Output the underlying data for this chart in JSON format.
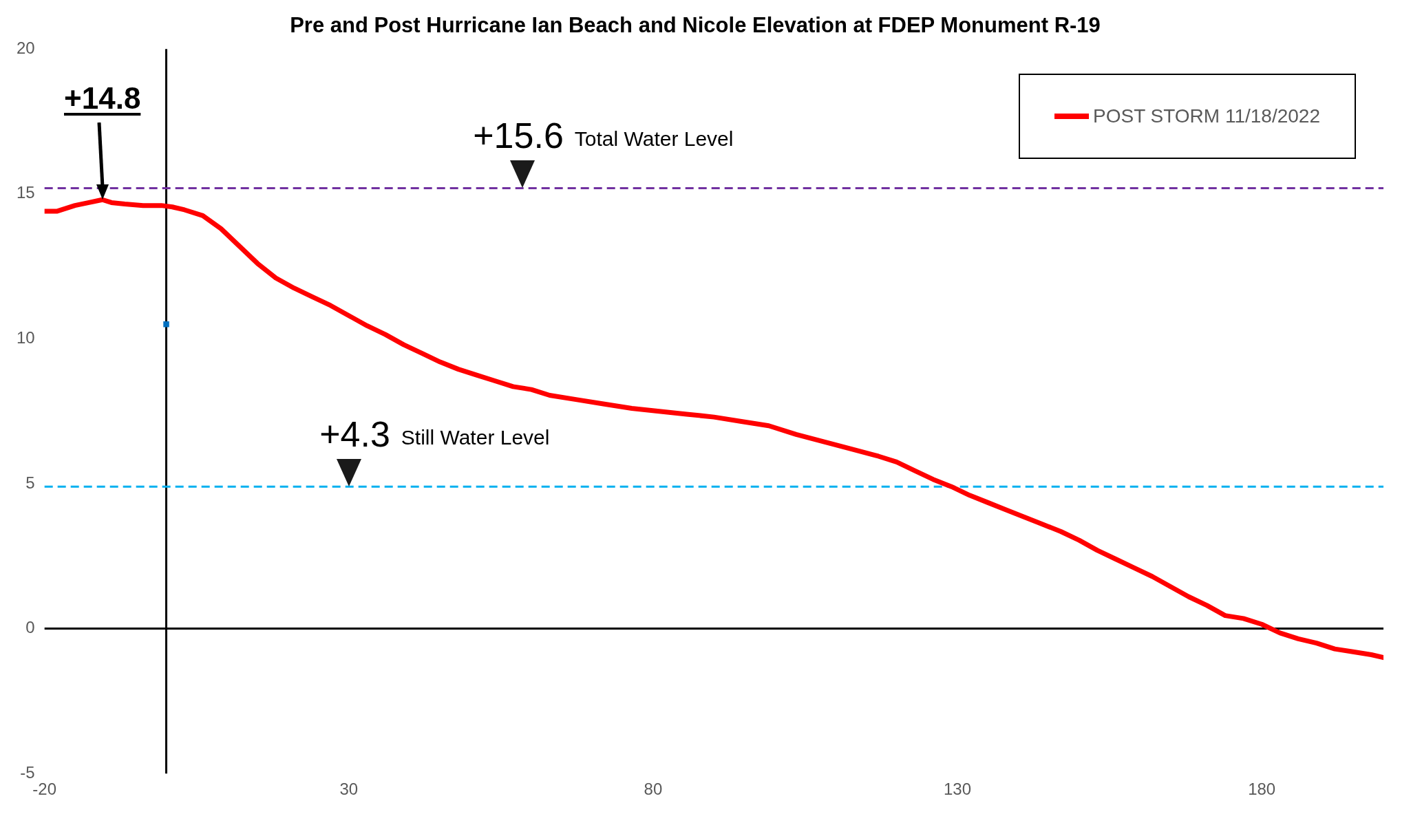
{
  "chart_data": {
    "type": "line",
    "title": "Pre and Post Hurricane Ian Beach and Nicole Elevation at FDEP Monument R-19",
    "xlim": [
      -20,
      200
    ],
    "xticks": [
      -20,
      30,
      80,
      130,
      180
    ],
    "ylim": [
      -5,
      20
    ],
    "yticks": [
      -5,
      0,
      5,
      10,
      15,
      20
    ],
    "legend": "top right",
    "series": [
      {
        "name": "POST STORM 11/18/2022",
        "color": "#ff0000",
        "marker": "none",
        "x": [
          -20,
          -18,
          -15,
          -12.7,
          -10.5,
          -9,
          -6.8,
          -3.8,
          -0.8,
          1,
          3,
          6,
          9,
          12,
          15,
          18,
          21,
          24,
          27,
          30,
          33,
          36,
          39,
          42,
          45,
          48,
          51,
          54,
          57,
          60,
          63,
          67.5,
          72,
          76.5,
          81,
          85.5,
          90,
          94.5,
          99,
          103.5,
          108,
          112.5,
          117,
          120,
          123,
          126,
          129,
          132,
          135,
          138,
          141,
          144,
          147,
          150,
          153,
          156,
          159,
          162,
          165,
          168,
          171,
          174,
          177,
          180,
          183,
          186,
          189,
          192,
          195,
          198,
          200
        ],
        "values": [
          14.4,
          14.4,
          14.6,
          14.7,
          14.8,
          14.7,
          14.65,
          14.6,
          14.6,
          14.55,
          14.45,
          14.25,
          13.8,
          13.2,
          12.6,
          12.1,
          11.75,
          11.45,
          11.15,
          10.8,
          10.45,
          10.15,
          9.8,
          9.5,
          9.2,
          8.95,
          8.75,
          8.55,
          8.35,
          8.25,
          8.05,
          7.9,
          7.75,
          7.6,
          7.5,
          7.4,
          7.3,
          7.15,
          7,
          6.7,
          6.45,
          6.2,
          5.95,
          5.75,
          5.45,
          5.15,
          4.9,
          4.6,
          4.35,
          4.1,
          3.85,
          3.6,
          3.35,
          3.05,
          2.7,
          2.4,
          2.1,
          1.8,
          1.45,
          1.1,
          0.8,
          0.45,
          0.35,
          0.15,
          -0.15,
          -0.35,
          -0.5,
          -0.7,
          -0.8,
          -0.9,
          -1
        ]
      },
      {
        "type": "scatter",
        "color": "#0070c0",
        "marker": "square",
        "x": [
          0
        ],
        "values": [
          10.5
        ]
      }
    ],
    "ref_lines": [
      {
        "axis": "y",
        "value": 15.2,
        "label": "Total Water Level",
        "color": "#7030a0",
        "line_style": "dashed"
      },
      {
        "axis": "y",
        "value": 4.9,
        "label": "Still Water Level",
        "color": "#00b0f0",
        "line_style": "dashed"
      }
    ],
    "annotations": [
      {
        "text": "+14.8",
        "x": -10.5,
        "y": 14.8
      },
      {
        "text": "+15.6",
        "x": 58.5,
        "y": 15.2
      },
      {
        "text": "+4.3",
        "x": 30,
        "y": 4.9
      }
    ]
  }
}
